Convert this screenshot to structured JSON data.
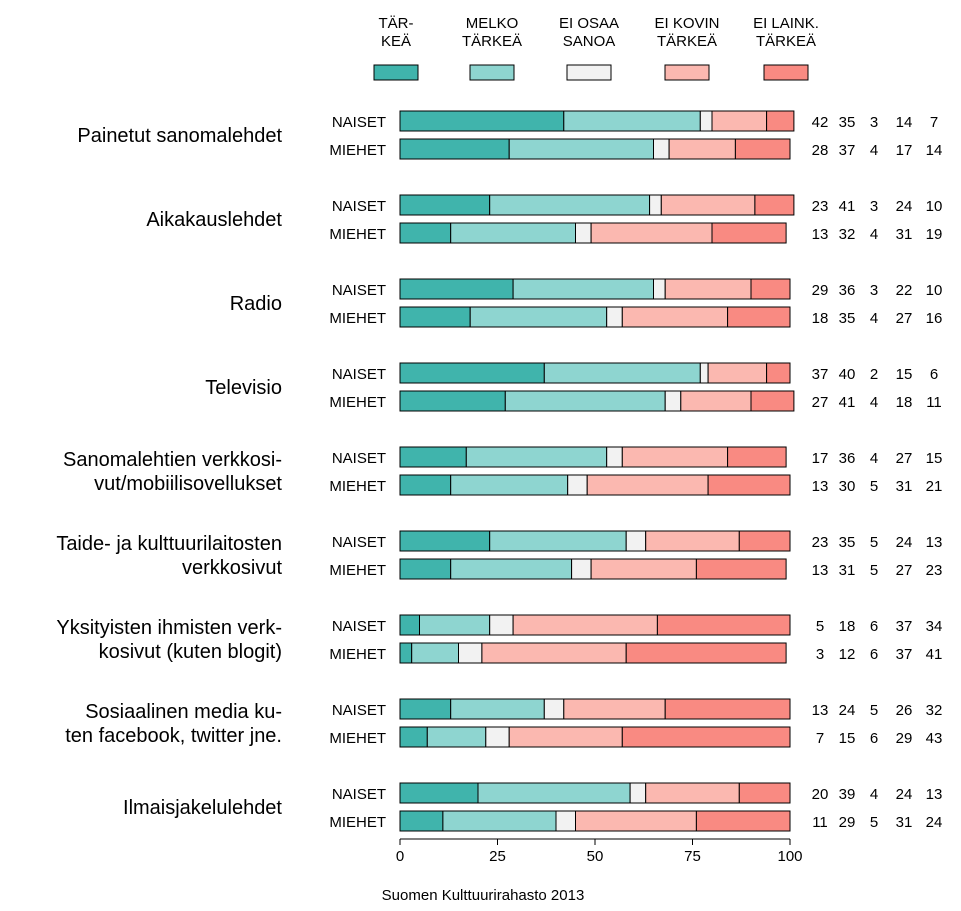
{
  "chart_data": {
    "type": "bar",
    "stacked": true,
    "orientation": "horizontal",
    "legend": [
      {
        "lines": [
          "TÄR-",
          "KEÄ"
        ],
        "color": "#40b4ac"
      },
      {
        "lines": [
          "MELKO",
          "TÄRKEÄ"
        ],
        "color": "#8ed5d0"
      },
      {
        "lines": [
          "EI OSAA",
          "SANOA"
        ],
        "color": "#f2f2f2"
      },
      {
        "lines": [
          "EI KOVIN",
          "TÄRKEÄ"
        ],
        "color": "#fbb8b0"
      },
      {
        "lines": [
          "EI LAINK.",
          "TÄRKEÄ"
        ],
        "color": "#f98a82"
      }
    ],
    "categories": [
      {
        "label": [
          "Painetut sanomalehdet"
        ],
        "rows": [
          {
            "group": "NAISET",
            "values": [
              42,
              35,
              3,
              14,
              7
            ]
          },
          {
            "group": "MIEHET",
            "values": [
              28,
              37,
              4,
              17,
              14
            ]
          }
        ]
      },
      {
        "label": [
          "Aikakauslehdet"
        ],
        "rows": [
          {
            "group": "NAISET",
            "values": [
              23,
              41,
              3,
              24,
              10
            ]
          },
          {
            "group": "MIEHET",
            "values": [
              13,
              32,
              4,
              31,
              19
            ]
          }
        ]
      },
      {
        "label": [
          "Radio"
        ],
        "rows": [
          {
            "group": "NAISET",
            "values": [
              29,
              36,
              3,
              22,
              10
            ]
          },
          {
            "group": "MIEHET",
            "values": [
              18,
              35,
              4,
              27,
              16
            ]
          }
        ]
      },
      {
        "label": [
          "Televisio"
        ],
        "rows": [
          {
            "group": "NAISET",
            "values": [
              37,
              40,
              2,
              15,
              6
            ]
          },
          {
            "group": "MIEHET",
            "values": [
              27,
              41,
              4,
              18,
              11
            ]
          }
        ]
      },
      {
        "label": [
          "Sanomalehtien verkkosi-",
          "vut/mobiilisovellukset"
        ],
        "rows": [
          {
            "group": "NAISET",
            "values": [
              17,
              36,
              4,
              27,
              15
            ]
          },
          {
            "group": "MIEHET",
            "values": [
              13,
              30,
              5,
              31,
              21
            ]
          }
        ]
      },
      {
        "label": [
          "Taide- ja kulttuurilaitosten",
          "verkkosivut"
        ],
        "rows": [
          {
            "group": "NAISET",
            "values": [
              23,
              35,
              5,
              24,
              13
            ]
          },
          {
            "group": "MIEHET",
            "values": [
              13,
              31,
              5,
              27,
              23
            ]
          }
        ]
      },
      {
        "label": [
          "Yksityisten ihmisten verk-",
          "kosivut (kuten blogit)"
        ],
        "rows": [
          {
            "group": "NAISET",
            "values": [
              5,
              18,
              6,
              37,
              34
            ]
          },
          {
            "group": "MIEHET",
            "values": [
              3,
              12,
              6,
              37,
              41
            ]
          }
        ]
      },
      {
        "label": [
          "Sosiaalinen media ku-",
          "ten facebook, twitter jne."
        ],
        "rows": [
          {
            "group": "NAISET",
            "values": [
              13,
              24,
              5,
              26,
              32
            ]
          },
          {
            "group": "MIEHET",
            "values": [
              7,
              15,
              6,
              29,
              43
            ]
          }
        ]
      },
      {
        "label": [
          "Ilmaisjakelulehdet"
        ],
        "rows": [
          {
            "group": "NAISET",
            "values": [
              20,
              39,
              4,
              24,
              13
            ]
          },
          {
            "group": "MIEHET",
            "values": [
              11,
              29,
              5,
              31,
              24
            ]
          }
        ]
      }
    ],
    "xticks": [
      0,
      25,
      50,
      75,
      100
    ],
    "xlim": [
      0,
      100
    ],
    "source": "Suomen Kulttuurirahasto 2013"
  }
}
